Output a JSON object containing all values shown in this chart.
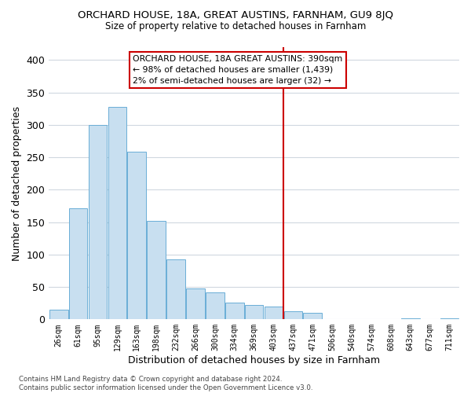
{
  "title": "ORCHARD HOUSE, 18A, GREAT AUSTINS, FARNHAM, GU9 8JQ",
  "subtitle": "Size of property relative to detached houses in Farnham",
  "xlabel": "Distribution of detached houses by size in Farnham",
  "ylabel": "Number of detached properties",
  "bar_color": "#c8dff0",
  "bar_edge_color": "#6aaed6",
  "background_color": "#ffffff",
  "grid_color": "#d0d8e0",
  "bin_labels": [
    "26sqm",
    "61sqm",
    "95sqm",
    "129sqm",
    "163sqm",
    "198sqm",
    "232sqm",
    "266sqm",
    "300sqm",
    "334sqm",
    "369sqm",
    "403sqm",
    "437sqm",
    "471sqm",
    "506sqm",
    "540sqm",
    "574sqm",
    "608sqm",
    "643sqm",
    "677sqm",
    "711sqm"
  ],
  "bar_heights": [
    15,
    172,
    300,
    328,
    259,
    152,
    93,
    48,
    42,
    26,
    22,
    20,
    12,
    10,
    0,
    0,
    0,
    0,
    2,
    0,
    2
  ],
  "ylim": [
    0,
    420
  ],
  "yticks": [
    0,
    50,
    100,
    150,
    200,
    250,
    300,
    350,
    400
  ],
  "property_line_x": 11.5,
  "property_line_color": "#cc0000",
  "annotation_title": "ORCHARD HOUSE, 18A GREAT AUSTINS: 390sqm",
  "annotation_line1": "← 98% of detached houses are smaller (1,439)",
  "annotation_line2": "2% of semi-detached houses are larger (32) →",
  "footer_line1": "Contains HM Land Registry data © Crown copyright and database right 2024.",
  "footer_line2": "Contains public sector information licensed under the Open Government Licence v3.0."
}
